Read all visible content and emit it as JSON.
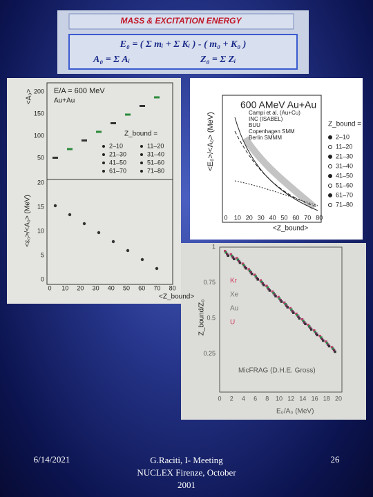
{
  "header": {
    "title": "MASS & EXCITATION ENERGY",
    "formula_1": "E₀ = ( Σ mᵢ + Σ Kᵢ ) - ( m₀ + K₀ )",
    "formula_2a": "A₀ = Σ Aᵢ",
    "formula_2b": "Z₀ = Σ Zᵢ"
  },
  "figure_left": {
    "top_ylabel": "<A₀>",
    "top_yticks": [
      "200",
      "150",
      "100",
      "50"
    ],
    "energy": "E/A = 600 MeV",
    "system": "Au+Au",
    "legend_title": "Z_bound =",
    "legend": [
      "2–10",
      "11–20",
      "21–30",
      "31–40",
      "41–50",
      "51–60",
      "61–70",
      "71–80"
    ],
    "bottom_ylabel": "<ε₀>/<A₀> (MeV)",
    "bottom_yticks": [
      "20",
      "15",
      "10",
      "5",
      "0"
    ],
    "xticks": [
      "0",
      "10",
      "20",
      "30",
      "40",
      "50",
      "60",
      "70",
      "80"
    ],
    "xlabel": "<Z_bound>"
  },
  "figure_top_right": {
    "title": "600 AMeV Au+Au",
    "ylabel": "<E₀>/<A₀> (MeV)",
    "legend": [
      "Campi et al. (Au+Cu)",
      "INC (ISABEL)",
      "BUU",
      "Copenhagen SMM",
      "Berlin SMMM"
    ],
    "zbound_title": "Z_bound =",
    "zbound_list": [
      "2–10",
      "11–20",
      "21–30",
      "31–40",
      "41–50",
      "51–60",
      "61–70",
      "71–80"
    ],
    "xticks": [
      "0",
      "10",
      "20",
      "30",
      "40",
      "50",
      "60",
      "70",
      "80"
    ],
    "xlabel": "<Z_bound>"
  },
  "figure_bottom_right": {
    "ylabel": "Z_bound/Z₀",
    "yticks": [
      "1",
      "0.75",
      "0.5",
      "0.25"
    ],
    "systems": [
      "Kr",
      "Xe",
      "Au",
      "U"
    ],
    "model": "MicFRAG (D.H.E. Gross)",
    "xticks": [
      "0",
      "2",
      "4",
      "6",
      "8",
      "10",
      "12",
      "14",
      "16",
      "18",
      "20"
    ],
    "xlabel": "E₀/A₀ (MeV)"
  },
  "footer": {
    "date": "6/14/2021",
    "author": "G.Raciti, I- Meeting NUCLEX Firenze, October 2001",
    "page": "26"
  }
}
